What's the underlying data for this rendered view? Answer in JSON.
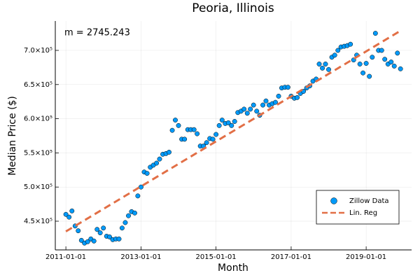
{
  "chart_data": {
    "type": "scatter",
    "title": "Peoria, Illinois",
    "x_label": "Month",
    "y_label": "Median Price ($)",
    "annotation": "m = 2745.243",
    "xlim": [
      "2010-09-20",
      "2020-03-18"
    ],
    "xticks": [
      "2011-01-01",
      "2013-01-01",
      "2015-01-01",
      "2017-01-01",
      "2019-01-01"
    ],
    "ylim": [
      408000,
      743000
    ],
    "yticks": [
      {
        "value": 450000,
        "label": "4.5×10⁵"
      },
      {
        "value": 500000,
        "label": "5.0×10⁵"
      },
      {
        "value": 550000,
        "label": "5.5×10⁵"
      },
      {
        "value": 600000,
        "label": "6.0×10⁵"
      },
      {
        "value": 650000,
        "label": "6.5×10⁵"
      },
      {
        "value": 700000,
        "label": "7.0×10⁵"
      }
    ],
    "grid": true,
    "legend_position": "bottom-right",
    "series": [
      {
        "name": "Zillow Data",
        "kind": "scatter",
        "color": "#009af9",
        "x": [
          "2011-01-01",
          "2011-02-01",
          "2011-03-01",
          "2011-04-01",
          "2011-05-01",
          "2011-06-01",
          "2011-07-01",
          "2011-08-01",
          "2011-09-01",
          "2011-10-01",
          "2011-11-01",
          "2011-12-01",
          "2012-01-01",
          "2012-02-01",
          "2012-03-01",
          "2012-04-01",
          "2012-05-01",
          "2012-06-01",
          "2012-07-01",
          "2012-08-01",
          "2012-09-01",
          "2012-10-01",
          "2012-11-01",
          "2012-12-01",
          "2013-01-01",
          "2013-02-01",
          "2013-03-01",
          "2013-04-01",
          "2013-05-01",
          "2013-06-01",
          "2013-07-01",
          "2013-08-01",
          "2013-09-01",
          "2013-10-01",
          "2013-11-01",
          "2013-12-01",
          "2014-01-01",
          "2014-02-01",
          "2014-03-01",
          "2014-04-01",
          "2014-05-01",
          "2014-06-01",
          "2014-07-01",
          "2014-08-01",
          "2014-09-01",
          "2014-10-01",
          "2014-11-01",
          "2014-12-01",
          "2015-01-01",
          "2015-02-01",
          "2015-03-01",
          "2015-04-01",
          "2015-05-01",
          "2015-06-01",
          "2015-07-01",
          "2015-08-01",
          "2015-09-01",
          "2015-10-01",
          "2015-11-01",
          "2015-12-01",
          "2016-01-01",
          "2016-02-01",
          "2016-03-01",
          "2016-04-01",
          "2016-05-01",
          "2016-06-01",
          "2016-07-01",
          "2016-08-01",
          "2016-09-01",
          "2016-10-01",
          "2016-11-01",
          "2016-12-01",
          "2017-01-01",
          "2017-02-01",
          "2017-03-01",
          "2017-04-01",
          "2017-05-01",
          "2017-06-01",
          "2017-07-01",
          "2017-08-01",
          "2017-09-01",
          "2017-10-01",
          "2017-11-01",
          "2017-12-01",
          "2018-01-01",
          "2018-02-01",
          "2018-03-01",
          "2018-04-01",
          "2018-05-01",
          "2018-06-01",
          "2018-07-01",
          "2018-08-01",
          "2018-09-01",
          "2018-10-01",
          "2018-11-01",
          "2018-12-01",
          "2019-01-01",
          "2019-02-01",
          "2019-03-01",
          "2019-04-01",
          "2019-05-01",
          "2019-06-01",
          "2019-07-01",
          "2019-08-01",
          "2019-09-01",
          "2019-10-01",
          "2019-11-01",
          "2019-12-01"
        ],
        "values": [
          460000,
          456000,
          465000,
          443000,
          436000,
          422000,
          418000,
          420000,
          424000,
          421000,
          438000,
          433000,
          440000,
          428000,
          427000,
          423000,
          424000,
          424000,
          440000,
          448000,
          458000,
          464000,
          462000,
          487000,
          500000,
          522000,
          520000,
          529000,
          532000,
          535000,
          541000,
          548000,
          549000,
          551000,
          583000,
          598000,
          590000,
          570000,
          570000,
          584000,
          584000,
          584000,
          578000,
          560000,
          560000,
          565000,
          571000,
          570000,
          577000,
          590000,
          598000,
          593000,
          594000,
          590000,
          596000,
          609000,
          611000,
          614000,
          608000,
          614000,
          620000,
          611000,
          605000,
          620000,
          626000,
          620000,
          622000,
          624000,
          633000,
          645000,
          646000,
          646000,
          633000,
          630000,
          631000,
          637000,
          640000,
          645000,
          648000,
          655000,
          658000,
          680000,
          674000,
          680000,
          672000,
          690000,
          693000,
          700000,
          705000,
          706000,
          707000,
          709000,
          686000,
          693000,
          680000,
          667000,
          681000,
          662000,
          690000,
          725000,
          700000,
          700000,
          687000,
          680000,
          683000,
          677000,
          696000,
          673000
        ]
      },
      {
        "name": "Lin. Reg",
        "kind": "line",
        "color": "#e26f46",
        "x": [
          "2011-01-01",
          "2019-12-01"
        ],
        "values": [
          435000,
          728700
        ]
      }
    ]
  }
}
